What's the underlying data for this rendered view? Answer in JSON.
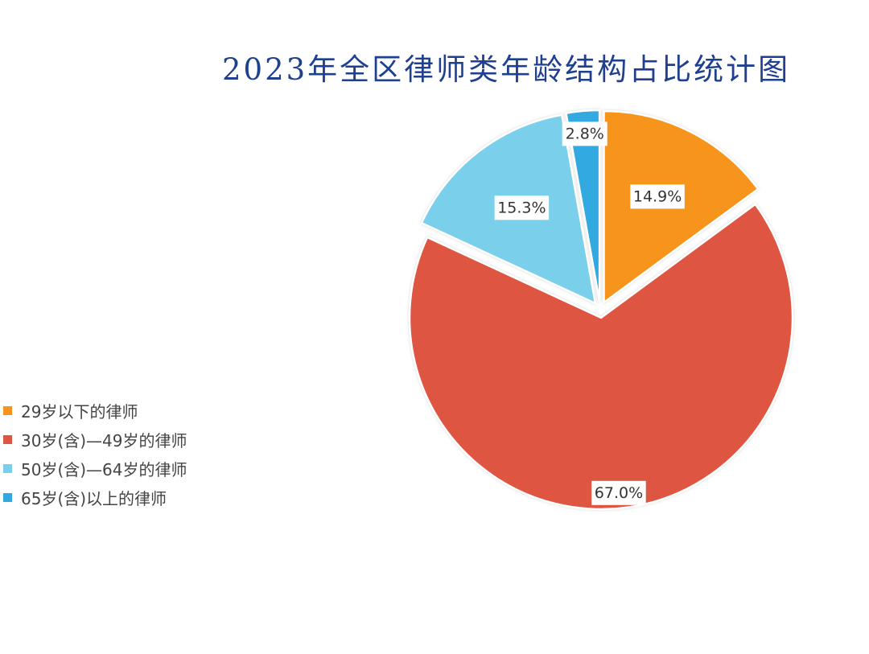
{
  "chart_data": {
    "type": "pie",
    "title": "2023年全区律师类年龄结构占比统计图",
    "categories": [
      "29岁以下的律师",
      "30岁(含)—49岁的律师",
      "50岁(含)—64岁的律师",
      "65岁(含)以上的律师"
    ],
    "values": [
      14.9,
      67.0,
      15.3,
      2.8
    ],
    "labels": [
      "14.9%",
      "67.0%",
      "15.3%",
      "2.8%"
    ],
    "colors": [
      "#f7941d",
      "#de5543",
      "#7ad0ea",
      "#30a9e1"
    ],
    "exploded": true,
    "start_angle": "12 o'clock, clockwise",
    "legend_position": "left"
  }
}
